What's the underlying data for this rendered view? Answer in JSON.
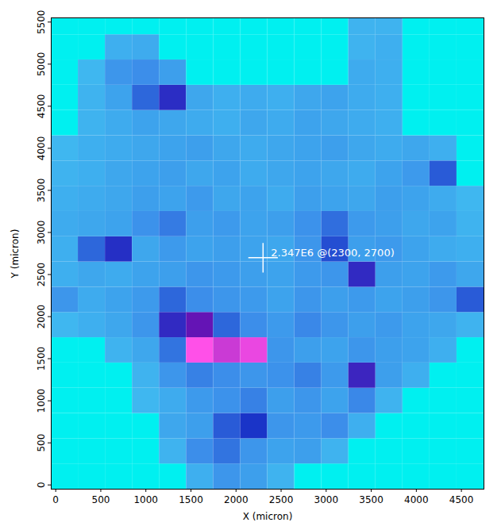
{
  "chart_data": {
    "type": "heatmap",
    "xlabel": "X (micron)",
    "ylabel": "Y (micron)",
    "xlim": [
      -50,
      4750
    ],
    "ylim": [
      -50,
      5550
    ],
    "xticks": [
      0,
      500,
      1000,
      1500,
      2000,
      2500,
      3000,
      3500,
      4000,
      4500
    ],
    "yticks": [
      0,
      500,
      1000,
      1500,
      2000,
      2500,
      3000,
      3500,
      4000,
      4500,
      5000,
      5500
    ],
    "zlim": [
      0,
      7000000
    ],
    "cell_size": 300,
    "cells": {
      "x": [
        100,
        400,
        700,
        1000,
        1300,
        1600,
        1900,
        2200,
        2500,
        2800,
        3100,
        3400,
        3700,
        4000,
        4300,
        4600
      ],
      "y": [
        100,
        400,
        700,
        1000,
        1300,
        1600,
        1900,
        2200,
        2500,
        2800,
        3100,
        3400,
        3700,
        4000,
        4300,
        4600,
        4900,
        5200,
        5500
      ],
      "values": [
        [
          0,
          0,
          0,
          0,
          0,
          2000000.0,
          2600000.0,
          2400000.0,
          1900000.0,
          0,
          0,
          0,
          0,
          0,
          0,
          0
        ],
        [
          0,
          0,
          0,
          0,
          1900000.0,
          2800000.0,
          3200000.0,
          2600000.0,
          2300000.0,
          2400000.0,
          1900000.0,
          0,
          0,
          0,
          0,
          0
        ],
        [
          0,
          0,
          0,
          0,
          2200000.0,
          2400000.0,
          3600000.0,
          4200000.0,
          2600000.0,
          2500000.0,
          2800000.0,
          2000000.0,
          0,
          0,
          0,
          0
        ],
        [
          0,
          0,
          0,
          1800000.0,
          2100000.0,
          2500000.0,
          2700000.0,
          3000000.0,
          2400000.0,
          2600000.0,
          2300000.0,
          2900000.0,
          1900000.0,
          0,
          0,
          0
        ],
        [
          0,
          0,
          0,
          1900000.0,
          2600000.0,
          3000000.0,
          2800000.0,
          2600000.0,
          2700000.0,
          3000000.0,
          2500000.0,
          4800000.0,
          2400000.0,
          2000000.0,
          0,
          0
        ],
        [
          0,
          0,
          1900000.0,
          2200000.0,
          3200000.0,
          7000000.0,
          6500000.0,
          6800000.0,
          2600000.0,
          2400000.0,
          2300000.0,
          2600000.0,
          2400000.0,
          2300000.0,
          2000000.0,
          0
        ],
        [
          1800000.0,
          2000000.0,
          2200000.0,
          2600000.0,
          4600000.0,
          5500000.0,
          3400000.0,
          2800000.0,
          2500000.0,
          2900000.0,
          2600000.0,
          2400000.0,
          2500000.0,
          2300000.0,
          2200000.0,
          1900000.0
        ],
        [
          2600000.0,
          2100000.0,
          2300000.0,
          2500000.0,
          3400000.0,
          2800000.0,
          2600000.0,
          2500000.0,
          2300000.0,
          2600000.0,
          2400000.0,
          2500000.0,
          2300000.0,
          2400000.0,
          2600000.0,
          3600000.0
        ],
        [
          2000000.0,
          2200000.0,
          2100000.0,
          2300000.0,
          2400000.0,
          2600000.0,
          2500000.0,
          2400000.0,
          2300000.0,
          2500000.0,
          2600000.0,
          4600000.0,
          2400000.0,
          2300000.0,
          2500000.0,
          2200000.0
        ],
        [
          2000000.0,
          3400000.0,
          4400000.0,
          2200000.0,
          2500000.0,
          2300000.0,
          2400000.0,
          2300000.0,
          2200000.0,
          2600000.0,
          3800000.0,
          2400000.0,
          2500000.0,
          2300000.0,
          2100000.0,
          2000000.0
        ],
        [
          2100000.0,
          2200000.0,
          2300000.0,
          2700000.0,
          3100000.0,
          2400000.0,
          2500000.0,
          2300000.0,
          2400000.0,
          2700000.0,
          3300000.0,
          2500000.0,
          2400000.0,
          2200000.0,
          2300000.0,
          1900000.0
        ],
        [
          2000000.0,
          2100000.0,
          2200000.0,
          2400000.0,
          2300000.0,
          2500000.0,
          2200000.0,
          2300000.0,
          2100000.0,
          2400000.0,
          2300000.0,
          2200000.0,
          2400000.0,
          2300000.0,
          2100000.0,
          1800000.0
        ],
        [
          1900000.0,
          2000000.0,
          2200000.0,
          2300000.0,
          2400000.0,
          2200000.0,
          2300000.0,
          2100000.0,
          2200000.0,
          2300000.0,
          2200000.0,
          2100000.0,
          2300000.0,
          2500000.0,
          3600000.0,
          0
        ],
        [
          1800000.0,
          2000000.0,
          2100000.0,
          2200000.0,
          2300000.0,
          2400000.0,
          2200000.0,
          2100000.0,
          2200000.0,
          2300000.0,
          2400000.0,
          2200000.0,
          2100000.0,
          2200000.0,
          2000000.0,
          0
        ],
        [
          0,
          1900000.0,
          2100000.0,
          2300000.0,
          2200000.0,
          2100000.0,
          2000000.0,
          2200000.0,
          2100000.0,
          2300000.0,
          2200000.0,
          2100000.0,
          2000000.0,
          0,
          0,
          0
        ],
        [
          0,
          1900000.0,
          2300000.0,
          3400000.0,
          4500000.0,
          2200000.0,
          2000000.0,
          2100000.0,
          2000000.0,
          2200000.0,
          2300000.0,
          2100000.0,
          2000000.0,
          0,
          0,
          0
        ],
        [
          0,
          1800000.0,
          2600000.0,
          2800000.0,
          2400000.0,
          0,
          0,
          0,
          0,
          0,
          0,
          2100000.0,
          2000000.0,
          0,
          0,
          0
        ],
        [
          0,
          0,
          2000000.0,
          2100000.0,
          0,
          0,
          0,
          0,
          0,
          0,
          0,
          1900000.0,
          2000000.0,
          0,
          0,
          0
        ],
        [
          0,
          0,
          0,
          0,
          0,
          0,
          0,
          0,
          0,
          0,
          0,
          1900000.0,
          1900000.0,
          0,
          0,
          0
        ]
      ]
    },
    "annotation": {
      "text": "2.347E6 @(2300, 2700)",
      "x": 2300,
      "y": 2700,
      "value": 2347000
    }
  }
}
